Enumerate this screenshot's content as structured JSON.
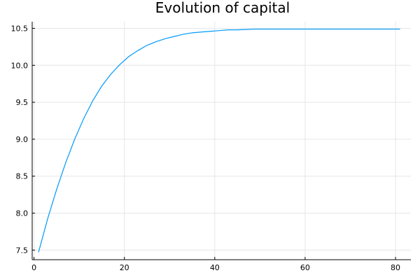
{
  "chart_data": {
    "type": "line",
    "title": "Evolution of capital",
    "xlabel": "",
    "ylabel": "",
    "xlim": [
      -0.4,
      83.4
    ],
    "ylim": [
      7.37,
      10.59
    ],
    "xticks": [
      0,
      20,
      40,
      60,
      80
    ],
    "yticks": [
      7.5,
      8.0,
      8.5,
      9.0,
      9.5,
      10.0,
      10.5
    ],
    "ytick_labels": [
      "7.5",
      "8.0",
      "8.5",
      "9.0",
      "9.5",
      "10.0",
      "10.5"
    ],
    "grid": true,
    "legend": false,
    "colors": {
      "series": "#009af9",
      "grid": "#e6e6e6",
      "axis": "#000000"
    },
    "series": [
      {
        "x": [
          1,
          3,
          5,
          7,
          9,
          11,
          13,
          15,
          17,
          19,
          21,
          23,
          25,
          27,
          29,
          31,
          33,
          35,
          37,
          39,
          41,
          43,
          45,
          47,
          49,
          51,
          55,
          60,
          65,
          70,
          75,
          81
        ],
        "values": [
          7.47,
          7.92,
          8.32,
          8.68,
          9.0,
          9.28,
          9.52,
          9.72,
          9.88,
          10.01,
          10.12,
          10.2,
          10.27,
          10.32,
          10.36,
          10.39,
          10.42,
          10.44,
          10.45,
          10.46,
          10.47,
          10.48,
          10.48,
          10.485,
          10.49,
          10.49,
          10.49,
          10.49,
          10.49,
          10.49,
          10.49,
          10.49
        ]
      }
    ]
  }
}
